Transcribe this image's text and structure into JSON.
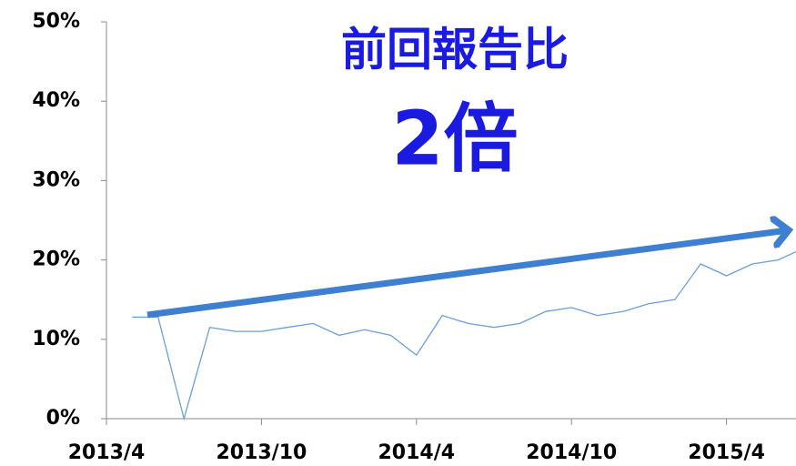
{
  "chart_data": {
    "type": "line",
    "annotations": [
      "前回報告比",
      "2倍"
    ],
    "x": [
      "2013/5",
      "2013/6",
      "2013/7",
      "2013/8",
      "2013/9",
      "2013/10",
      "2013/11",
      "2013/12",
      "2014/1",
      "2014/2",
      "2014/3",
      "2014/4",
      "2014/5",
      "2014/6",
      "2014/7",
      "2014/8",
      "2014/9",
      "2014/10",
      "2014/11",
      "2014/12",
      "2015/1",
      "2015/2",
      "2015/3",
      "2015/4",
      "2015/5",
      "2015/6",
      "2015/7"
    ],
    "series": [
      {
        "color": "#6a9fd8",
        "values": [
          12.8,
          12.8,
          0,
          11.5,
          11,
          11,
          11.5,
          12,
          10.5,
          11.2,
          10.5,
          8,
          13,
          12,
          11.5,
          12,
          13.5,
          14,
          13,
          13.5,
          14.5,
          15,
          19.5,
          18,
          19.5,
          20,
          21.5
        ]
      }
    ],
    "xticks": [
      "2013/4",
      "2013/10",
      "2014/4",
      "2014/10",
      "2015/4"
    ],
    "ylim": [
      0,
      50
    ],
    "yticks": [
      {
        "value": 0,
        "label": "0%"
      },
      {
        "value": 10,
        "label": "10%"
      },
      {
        "value": 20,
        "label": "20%"
      },
      {
        "value": 30,
        "label": "30%"
      },
      {
        "value": 40,
        "label": "40%"
      },
      {
        "value": 50,
        "label": "50%"
      }
    ],
    "arrow_color": "#3f7fcf"
  }
}
